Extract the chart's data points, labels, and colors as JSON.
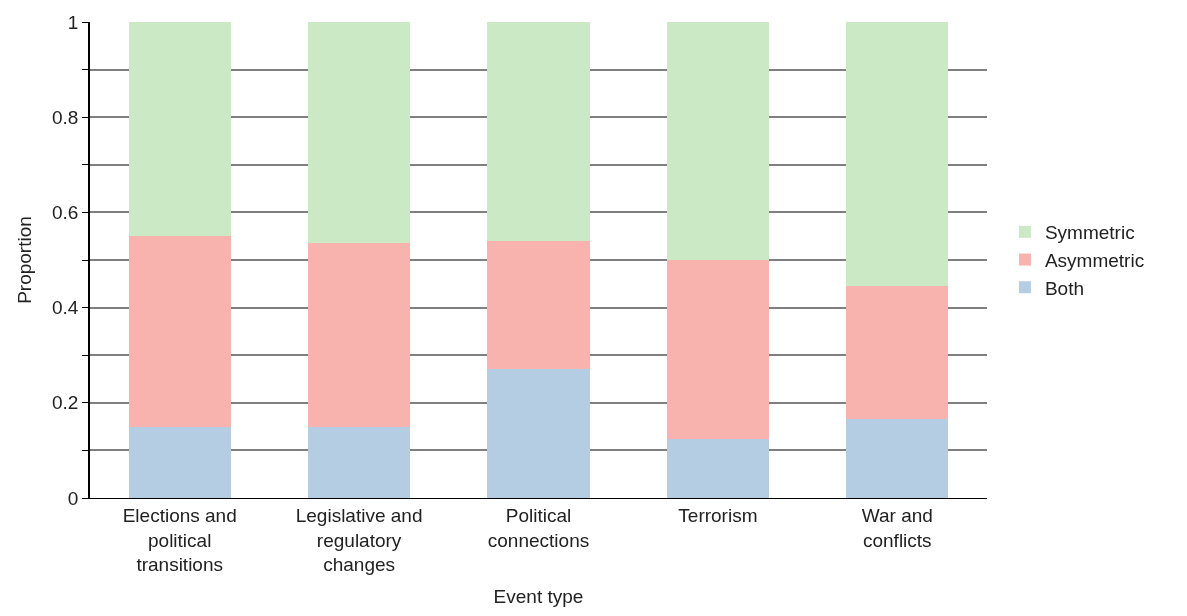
{
  "chart_data": {
    "type": "bar",
    "stacked": true,
    "xlabel": "Event type",
    "ylabel": "Proportion",
    "categories": [
      "Elections and political transitions",
      "Legislative and regulatory changes",
      "Political connections",
      "Terrorism",
      "War and conflicts"
    ],
    "series": [
      {
        "name": "Both",
        "color": "#b4cde2",
        "values": [
          0.15,
          0.15,
          0.27,
          0.125,
          0.165
        ]
      },
      {
        "name": "Asymmetric",
        "color": "#f9b3ae",
        "values": [
          0.4,
          0.385,
          0.27,
          0.375,
          0.28
        ]
      },
      {
        "name": "Symmetric",
        "color": "#cbe9c5",
        "values": [
          0.45,
          0.465,
          0.46,
          0.5,
          0.555
        ]
      }
    ],
    "ylim": [
      0,
      1
    ],
    "yticks": [
      0,
      {
        "value": 0.1,
        "label": null
      },
      0.2,
      {
        "value": 0.3,
        "label": null
      },
      0.4,
      {
        "value": 0.5,
        "label": null
      },
      0.6,
      {
        "value": 0.7,
        "label": null
      },
      0.8,
      {
        "value": 0.9,
        "label": null
      },
      1
    ],
    "grid": "y",
    "legend": "right"
  }
}
